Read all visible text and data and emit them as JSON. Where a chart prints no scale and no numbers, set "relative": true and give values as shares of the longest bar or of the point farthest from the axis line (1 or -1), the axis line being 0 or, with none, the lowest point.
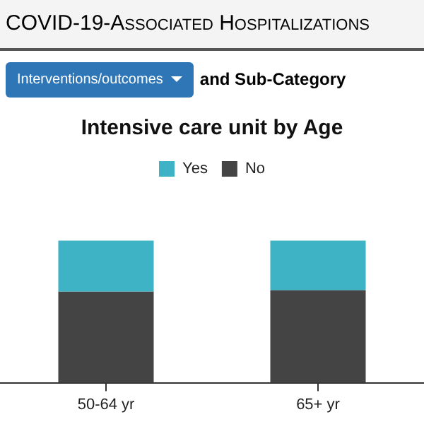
{
  "chart_data": {
    "type": "bar",
    "title": "Intensive care unit by Age",
    "annotations": [
      "COVID-19-Associated Hospitalizations",
      "Interventions/outcomes",
      "and Sub-Category"
    ],
    "categories": [
      "50-64 yr",
      "65+ yr"
    ],
    "series": [
      {
        "name": "No",
        "color": "#444444",
        "values": [
          0.64,
          0.65
        ]
      },
      {
        "name": "Yes",
        "color": "#3fb3c6",
        "values": [
          0.36,
          0.35
        ]
      }
    ],
    "stacked": true,
    "relative": true,
    "legend": "top",
    "grid": false
  }
}
